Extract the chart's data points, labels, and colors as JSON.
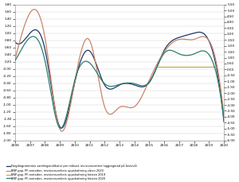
{
  "title": "",
  "years": [
    2006,
    2007,
    2008,
    2009,
    2010,
    2011,
    2012,
    2013,
    2014,
    2015,
    2016,
    2017,
    2018,
    2019,
    2020
  ],
  "color_indicator": [
    0.75,
    1.0,
    0.55,
    -1.62,
    -0.38,
    0.5,
    -0.45,
    -0.45,
    -0.45,
    -0.38,
    0.52,
    0.88,
    1.0,
    0.78,
    -1.48
  ],
  "bnp_spring2020": [
    0.9,
    4.8,
    2.7,
    -5.05,
    -1.05,
    2.45,
    -3.15,
    -3.2,
    -3.15,
    -0.9,
    1.5,
    2.55,
    2.55,
    2.45,
    -3.9
  ],
  "bnp_autumn2019": [
    null,
    null,
    null,
    null,
    null,
    null,
    null,
    null,
    null,
    null,
    0.25,
    0.25,
    0.25,
    0.25,
    null
  ],
  "bnp_autumn2020": [
    0.75,
    2.7,
    0.75,
    -4.95,
    -0.9,
    0.55,
    -1.2,
    -1.26,
    -1.2,
    -1.05,
    1.38,
    1.32,
    1.32,
    1.26,
    -4.2
  ],
  "color_indicator_color": "#1f3864",
  "bnp_spring2020_color": "#c9856a",
  "bnp_autumn2019_color": "#c8a84b",
  "bnp_autumn2020_color": "#2e7d6e",
  "ylim_left": [
    -2.0,
    1.8
  ],
  "ylim_right": [
    -6.0,
    5.5
  ],
  "yticks_left_step": 0.2,
  "yticks_right_step": 0.5,
  "legend_labels": [
    "Färgdiagrammets samlingsindikator per månad, revisionsverket (aggregerad på årsnivå)",
    "BNP-gap, PF-metoden, revisionsverkets uppskattning våren 2020",
    "BNP-gap, PF-metoden, revisionsverkets uppskattning hösten 2019",
    "BNP-gap, PF-metoden, revisionsverkets uppskattning hösten 2020"
  ],
  "legend_colors": [
    "#1f3864",
    "#c9856a",
    "#c8a84b",
    "#2e7d6e"
  ],
  "background_color": "#ffffff",
  "grid_color": "#d5d5d5",
  "xmin": 2006,
  "xmax": 2020
}
